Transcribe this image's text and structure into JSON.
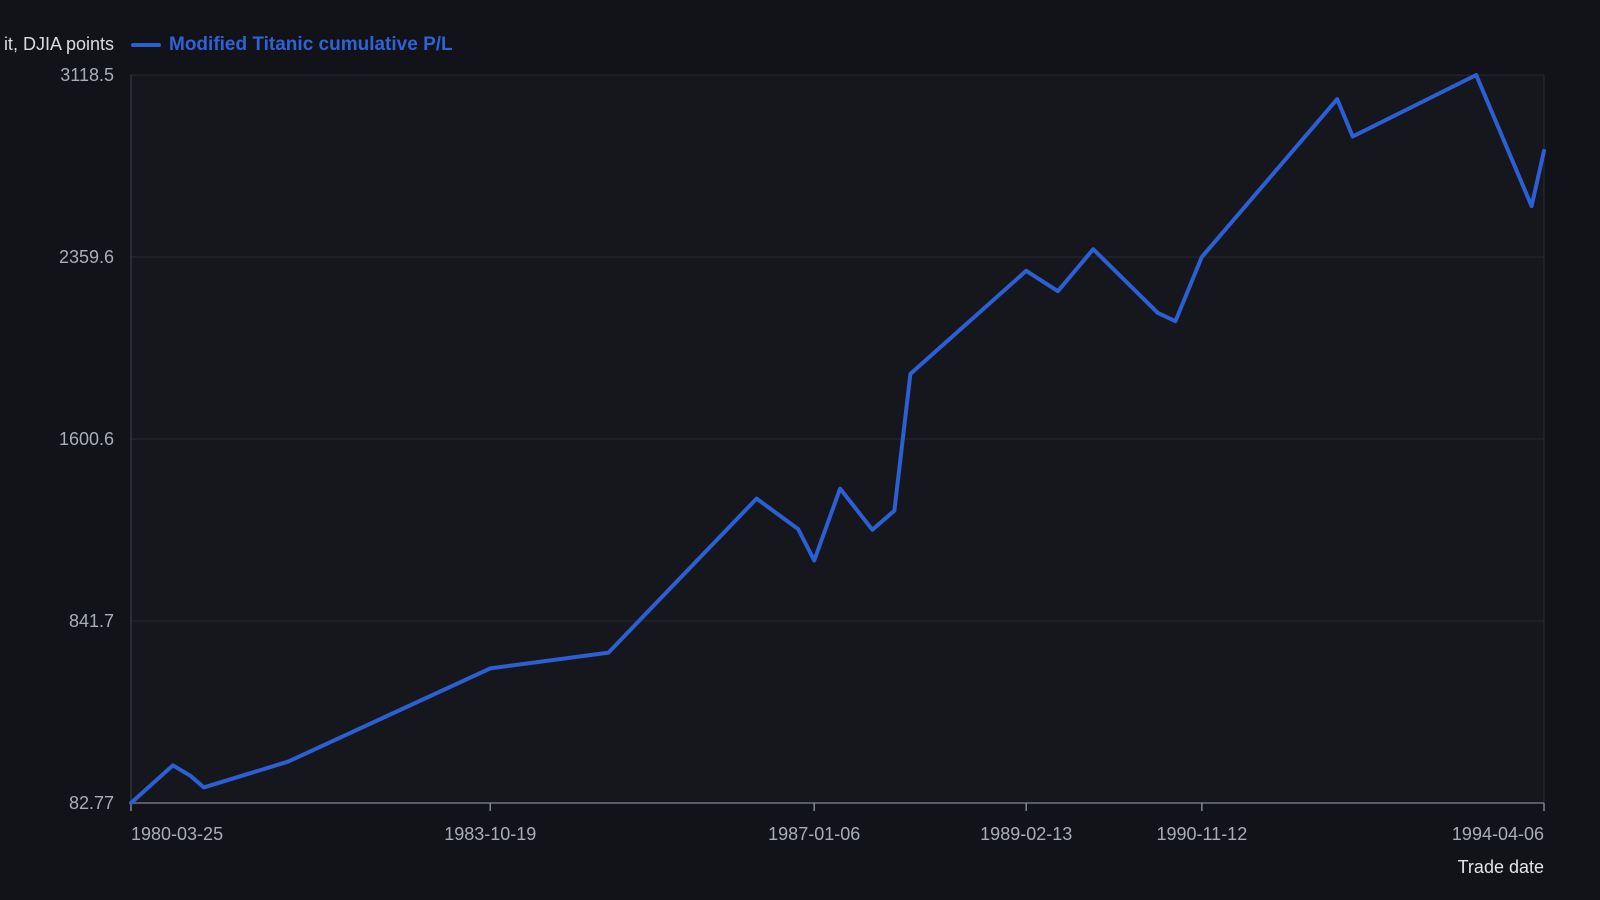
{
  "chart_data": {
    "type": "line",
    "title": "",
    "ylabel": "Profit, DJIA points",
    "ylabel_visible": "it, DJIA points",
    "xlabel": "Trade date",
    "ylim": [
      82.77,
      3118.5
    ],
    "xlim": [
      "1980-03-25",
      "1994-04-06"
    ],
    "y_ticks": [
      {
        "value": 82.77,
        "label": "82.77"
      },
      {
        "value": 841.7,
        "label": "841.7"
      },
      {
        "value": 1600.6,
        "label": "1600.6"
      },
      {
        "value": 2359.6,
        "label": "2359.6"
      },
      {
        "value": 3118.5,
        "label": "3118.5"
      }
    ],
    "x_ticks": [
      {
        "value": "1980-03-25",
        "label": "1980-03-25"
      },
      {
        "value": "1983-10-19",
        "label": "1983-10-19"
      },
      {
        "value": "1987-01-06",
        "label": "1987-01-06"
      },
      {
        "value": "1989-02-13",
        "label": "1989-02-13"
      },
      {
        "value": "1990-11-12",
        "label": "1990-11-12"
      },
      {
        "value": "1994-04-06",
        "label": "1994-04-06"
      }
    ],
    "grid": "horizontal",
    "legend": "top-left",
    "series": [
      {
        "name": "Modified Titanic cumulative P/L",
        "color": "#2c5fd4",
        "points": [
          {
            "x": "1980-03-25",
            "y": 82.77
          },
          {
            "x": "1980-08-24",
            "y": 240
          },
          {
            "x": "1980-10-28",
            "y": 195
          },
          {
            "x": "1980-12-14",
            "y": 148
          },
          {
            "x": "1981-10-15",
            "y": 255
          },
          {
            "x": "1983-10-19",
            "y": 644
          },
          {
            "x": "1984-12-21",
            "y": 710
          },
          {
            "x": "1986-06-11",
            "y": 1352
          },
          {
            "x": "1986-11-09",
            "y": 1225
          },
          {
            "x": "1987-01-06",
            "y": 1094
          },
          {
            "x": "1987-04-10",
            "y": 1394
          },
          {
            "x": "1987-08-05",
            "y": 1222
          },
          {
            "x": "1987-10-24",
            "y": 1302
          },
          {
            "x": "1987-12-21",
            "y": 1872
          },
          {
            "x": "1989-02-13",
            "y": 2302
          },
          {
            "x": "1989-06-08",
            "y": 2217
          },
          {
            "x": "1989-10-14",
            "y": 2392
          },
          {
            "x": "1990-06-05",
            "y": 2127
          },
          {
            "x": "1990-08-08",
            "y": 2092
          },
          {
            "x": "1990-11-12",
            "y": 2359.6
          },
          {
            "x": "1992-03-17",
            "y": 3018
          },
          {
            "x": "1992-05-12",
            "y": 2862
          },
          {
            "x": "1993-08-03",
            "y": 3118.5
          },
          {
            "x": "1994-02-20",
            "y": 2572
          },
          {
            "x": "1994-04-06",
            "y": 2802
          }
        ]
      }
    ]
  }
}
